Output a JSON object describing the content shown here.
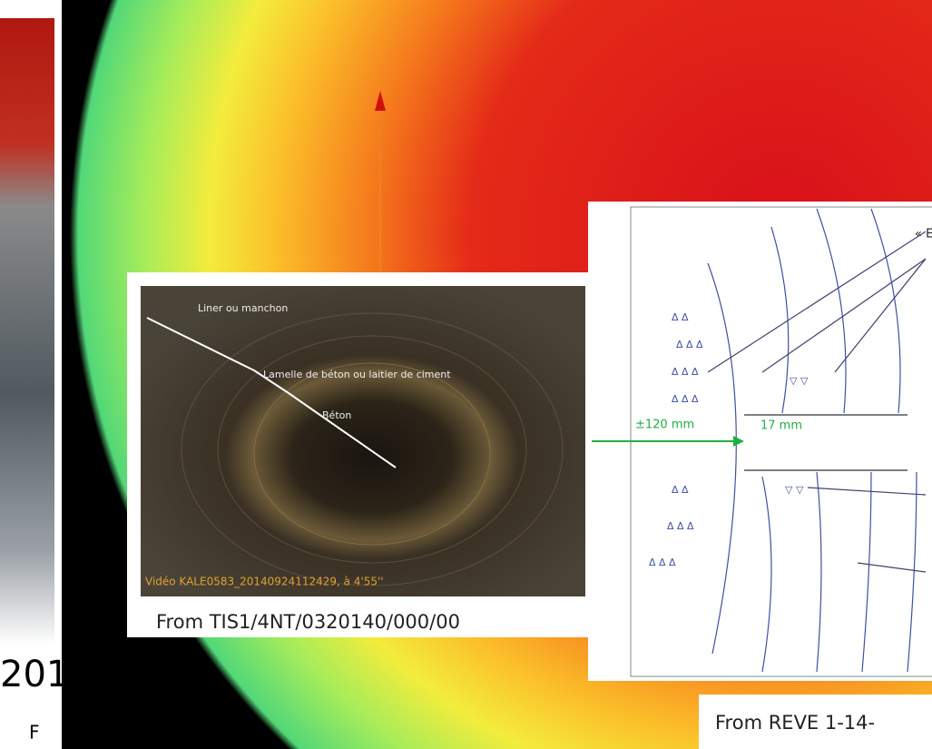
{
  "left_strip": {
    "year": "201",
    "letter": "F"
  },
  "photo": {
    "labels": [
      "Liner ou manchon",
      "Lamelle de béton ou laitier de ciment",
      "Béton"
    ],
    "video_caption": "Vidéo KALE0583_20140924112429, à 4'55''",
    "caption": "From TIS1/4NT/0320140/000/00"
  },
  "sketch": {
    "top_label": "« E",
    "distance_label": "±120 mm",
    "width_label": "17 mm",
    "caption": "From REVE 1-14-"
  }
}
